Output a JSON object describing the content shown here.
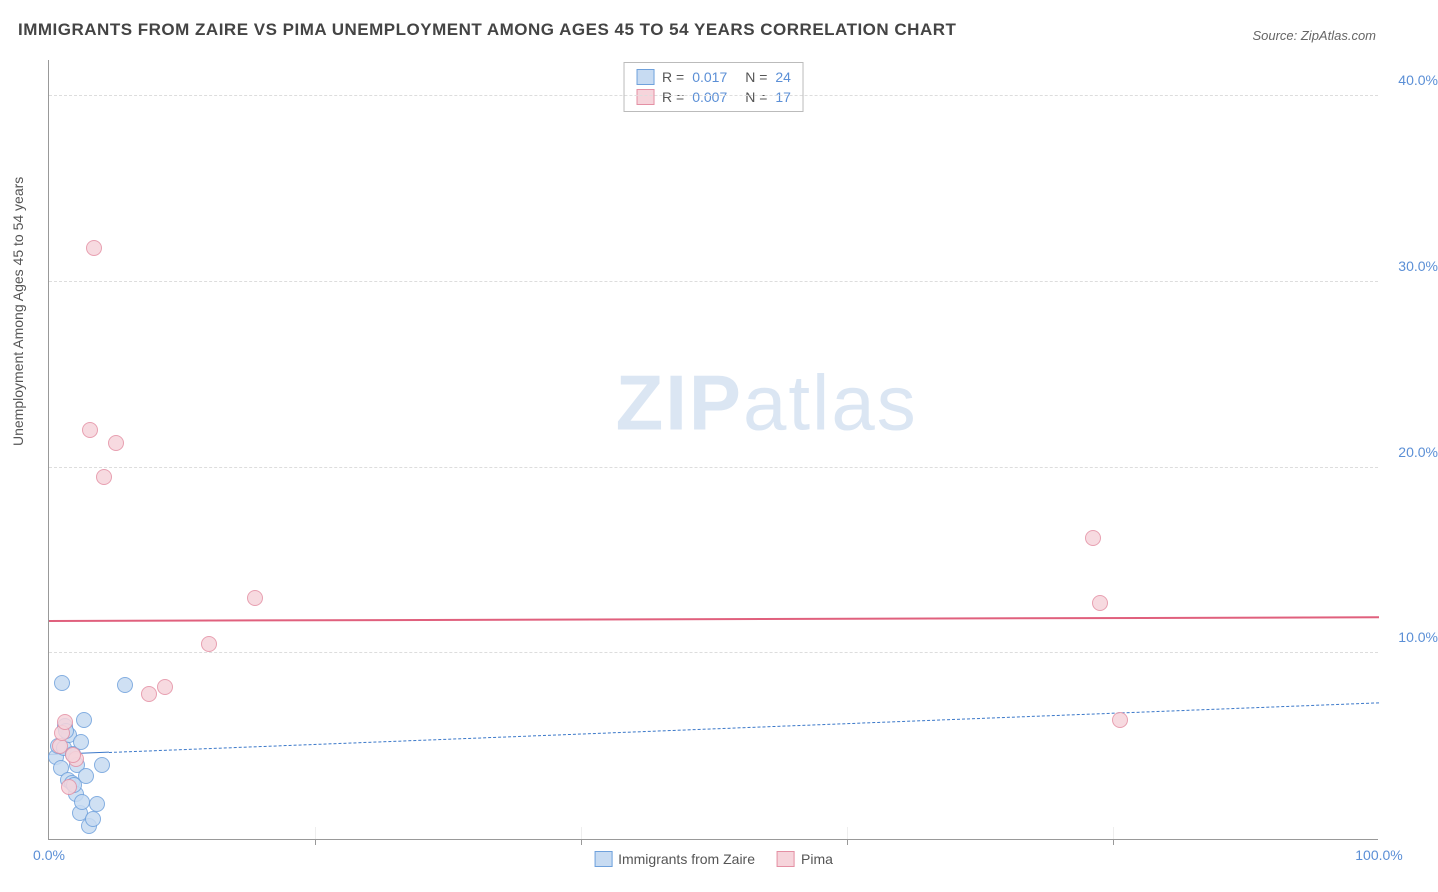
{
  "chart": {
    "type": "scatter",
    "title": "IMMIGRANTS FROM ZAIRE VS PIMA UNEMPLOYMENT AMONG AGES 45 TO 54 YEARS CORRELATION CHART",
    "source": "Source: ZipAtlas.com",
    "ylabel": "Unemployment Among Ages 45 to 54 years",
    "watermark": {
      "bold": "ZIP",
      "light": "atlas"
    },
    "background_color": "#ffffff",
    "grid_color": "#e5e5e5",
    "xlim": [
      0,
      100
    ],
    "ylim": [
      0,
      42
    ],
    "xticks": [
      0,
      20,
      40,
      60,
      80,
      100
    ],
    "xtick_labels": [
      "0.0%",
      "",
      "",
      "",
      "",
      "100.0%"
    ],
    "yticks": [
      10,
      20,
      30,
      40
    ],
    "ytick_labels": [
      "10.0%",
      "20.0%",
      "30.0%",
      "40.0%"
    ],
    "series": [
      {
        "name": "Immigrants from Zaire",
        "fill": "#c7dbf2",
        "stroke": "#6fa1dc",
        "r_label": "R =",
        "r_value": "0.017",
        "n_label": "N =",
        "n_value": "24",
        "trend": {
          "y0": 4.5,
          "y1": 7.3,
          "color": "#3b78c9",
          "dash": true,
          "weight": 1.5,
          "solid_until_x": 4.5
        },
        "points": [
          [
            0.5,
            4.4
          ],
          [
            0.7,
            5.0
          ],
          [
            0.9,
            3.8
          ],
          [
            1.0,
            8.4
          ],
          [
            1.1,
            4.9
          ],
          [
            1.2,
            6.1
          ],
          [
            1.4,
            3.2
          ],
          [
            1.5,
            5.6
          ],
          [
            1.7,
            3.0
          ],
          [
            1.8,
            4.6
          ],
          [
            2.0,
            2.4
          ],
          [
            2.1,
            4.0
          ],
          [
            2.3,
            1.4
          ],
          [
            2.4,
            5.2
          ],
          [
            2.5,
            2.0
          ],
          [
            2.6,
            6.4
          ],
          [
            2.8,
            3.4
          ],
          [
            3.0,
            0.7
          ],
          [
            3.3,
            1.1
          ],
          [
            3.6,
            1.9
          ],
          [
            4.0,
            4.0
          ],
          [
            5.7,
            8.3
          ],
          [
            1.3,
            5.8
          ],
          [
            1.9,
            2.9
          ]
        ]
      },
      {
        "name": "Pima",
        "fill": "#f6d4db",
        "stroke": "#e490a4",
        "r_label": "R =",
        "r_value": "0.007",
        "n_label": "N =",
        "n_value": "17",
        "trend": {
          "y0": 11.7,
          "y1": 11.9,
          "color": "#e0607d",
          "dash": false,
          "weight": 2.5,
          "solid_until_x": 100
        },
        "points": [
          [
            0.8,
            5.0
          ],
          [
            1.0,
            5.7
          ],
          [
            1.2,
            6.3
          ],
          [
            1.5,
            2.8
          ],
          [
            2.0,
            4.3
          ],
          [
            3.4,
            31.8
          ],
          [
            3.1,
            22.0
          ],
          [
            5.0,
            21.3
          ],
          [
            4.1,
            19.5
          ],
          [
            7.5,
            7.8
          ],
          [
            8.7,
            8.2
          ],
          [
            12.0,
            10.5
          ],
          [
            15.5,
            13.0
          ],
          [
            78.5,
            16.2
          ],
          [
            79.0,
            12.7
          ],
          [
            80.5,
            6.4
          ],
          [
            1.8,
            4.5
          ]
        ]
      }
    ]
  }
}
